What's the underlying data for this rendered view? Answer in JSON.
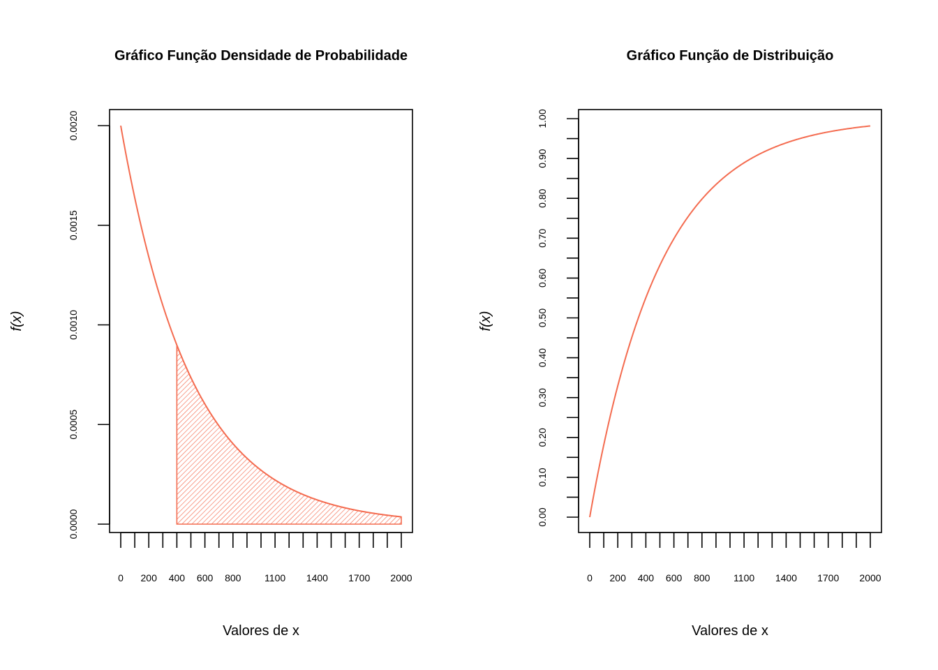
{
  "colors": {
    "curve": "#F46B4F",
    "axis": "#000000",
    "background": "#ffffff"
  },
  "chart_data": [
    {
      "type": "line",
      "title": "Gráfico Função Densidade de Probabilidade",
      "xlabel": "Valores de x",
      "ylabel": "f(x)",
      "xlim": [
        0,
        2000
      ],
      "ylim": [
        0,
        0.002
      ],
      "function": "exponential_pdf",
      "rate": 0.002,
      "x_tick_marks": [
        0,
        100,
        200,
        300,
        400,
        500,
        600,
        700,
        800,
        900,
        1000,
        1100,
        1200,
        1300,
        1400,
        1500,
        1600,
        1700,
        1800,
        1900,
        2000
      ],
      "x_tick_labels": [
        {
          "x": 0,
          "label": "0"
        },
        {
          "x": 200,
          "label": "200"
        },
        {
          "x": 400,
          "label": "400"
        },
        {
          "x": 600,
          "label": "600"
        },
        {
          "x": 800,
          "label": "800"
        },
        {
          "x": 1100,
          "label": "1100"
        },
        {
          "x": 1400,
          "label": "1400"
        },
        {
          "x": 1700,
          "label": "1700"
        },
        {
          "x": 2000,
          "label": "2000"
        }
      ],
      "y_ticks": [
        {
          "y": 0.0,
          "label": "0.0000"
        },
        {
          "y": 0.0005,
          "label": "0.0005"
        },
        {
          "y": 0.001,
          "label": "0.0010"
        },
        {
          "y": 0.0015,
          "label": "0.0015"
        },
        {
          "y": 0.002,
          "label": "0.0020"
        }
      ],
      "shaded_region": {
        "from": 400,
        "to": 2000,
        "style": "hatched"
      },
      "grid": false,
      "legend": "none"
    },
    {
      "type": "line",
      "title": "Gráfico Função de Distribuição",
      "xlabel": "Valores de x",
      "ylabel": "f(x)",
      "xlim": [
        0,
        2000
      ],
      "ylim": [
        0,
        1
      ],
      "function": "exponential_cdf",
      "rate": 0.002,
      "x_tick_marks": [
        0,
        100,
        200,
        300,
        400,
        500,
        600,
        700,
        800,
        900,
        1000,
        1100,
        1200,
        1300,
        1400,
        1500,
        1600,
        1700,
        1800,
        1900,
        2000
      ],
      "x_tick_labels": [
        {
          "x": 0,
          "label": "0"
        },
        {
          "x": 200,
          "label": "200"
        },
        {
          "x": 400,
          "label": "400"
        },
        {
          "x": 600,
          "label": "600"
        },
        {
          "x": 800,
          "label": "800"
        },
        {
          "x": 1100,
          "label": "1100"
        },
        {
          "x": 1400,
          "label": "1400"
        },
        {
          "x": 1700,
          "label": "1700"
        },
        {
          "x": 2000,
          "label": "2000"
        }
      ],
      "y_tick_marks": [
        0,
        0.05,
        0.1,
        0.15,
        0.2,
        0.25,
        0.3,
        0.35,
        0.4,
        0.45,
        0.5,
        0.55,
        0.6,
        0.65,
        0.7,
        0.75,
        0.8,
        0.85,
        0.9,
        0.95,
        1.0
      ],
      "y_tick_labels": [
        {
          "y": 0.0,
          "label": "0.00"
        },
        {
          "y": 0.1,
          "label": "0.10"
        },
        {
          "y": 0.2,
          "label": "0.20"
        },
        {
          "y": 0.3,
          "label": "0.30"
        },
        {
          "y": 0.4,
          "label": "0.40"
        },
        {
          "y": 0.5,
          "label": "0.50"
        },
        {
          "y": 0.6,
          "label": "0.60"
        },
        {
          "y": 0.7,
          "label": "0.70"
        },
        {
          "y": 0.8,
          "label": "0.80"
        },
        {
          "y": 0.9,
          "label": "0.90"
        },
        {
          "y": 1.0,
          "label": "1.00"
        }
      ],
      "grid": false,
      "legend": "none"
    }
  ]
}
